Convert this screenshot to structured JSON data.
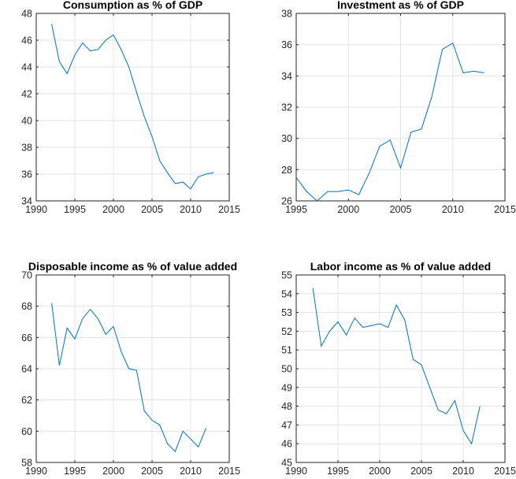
{
  "chart_data": [
    {
      "type": "line",
      "title": "Consumption as % of GDP",
      "xlabel": "",
      "ylabel": "",
      "xlim": [
        1990,
        2015
      ],
      "ylim": [
        34,
        48
      ],
      "xticks": [
        1990,
        1995,
        2000,
        2005,
        2010,
        2015
      ],
      "yticks": [
        34,
        36,
        38,
        40,
        42,
        44,
        46,
        48
      ],
      "grid": true,
      "color": "#0072bd",
      "x": [
        1992,
        1993,
        1994,
        1995,
        1996,
        1997,
        1998,
        1999,
        2000,
        2001,
        2002,
        2003,
        2004,
        2005,
        2006,
        2007,
        2008,
        2009,
        2010,
        2011,
        2012,
        2013
      ],
      "y": [
        47.2,
        44.4,
        43.5,
        44.9,
        45.8,
        45.2,
        45.3,
        46.0,
        46.4,
        45.3,
        44.0,
        42.1,
        40.3,
        38.8,
        37.0,
        36.1,
        35.3,
        35.4,
        34.9,
        35.8,
        36.0,
        36.1
      ]
    },
    {
      "type": "line",
      "title": "Investment as % of GDP",
      "xlabel": "",
      "ylabel": "",
      "xlim": [
        1995,
        2015
      ],
      "ylim": [
        26,
        38
      ],
      "xticks": [
        1995,
        2000,
        2005,
        2010,
        2015
      ],
      "yticks": [
        26,
        28,
        30,
        32,
        34,
        36,
        38
      ],
      "grid": true,
      "color": "#0072bd",
      "x": [
        1995,
        1996,
        1997,
        1998,
        1999,
        2000,
        2001,
        2002,
        2003,
        2004,
        2005,
        2006,
        2007,
        2008,
        2009,
        2010,
        2011,
        2012,
        2013
      ],
      "y": [
        27.5,
        26.6,
        26.0,
        26.6,
        26.6,
        26.7,
        26.4,
        27.8,
        29.5,
        29.9,
        28.1,
        30.4,
        30.6,
        32.7,
        35.7,
        36.1,
        34.2,
        34.3,
        34.2
      ]
    },
    {
      "type": "line",
      "title": "Disposable income as % of value added",
      "xlabel": "",
      "ylabel": "",
      "xlim": [
        1990,
        2015
      ],
      "ylim": [
        58,
        70
      ],
      "xticks": [
        1990,
        1995,
        2000,
        2005,
        2010,
        2015
      ],
      "yticks": [
        58,
        60,
        62,
        64,
        66,
        68,
        70
      ],
      "grid": true,
      "color": "#0072bd",
      "x": [
        1992,
        1993,
        1994,
        1995,
        1996,
        1997,
        1998,
        1999,
        2000,
        2001,
        2002,
        2003,
        2004,
        2005,
        2006,
        2007,
        2008,
        2009,
        2010,
        2011,
        2012
      ],
      "y": [
        68.2,
        64.2,
        66.6,
        65.9,
        67.2,
        67.8,
        67.2,
        66.2,
        66.7,
        65.1,
        64.0,
        63.9,
        61.3,
        60.7,
        60.4,
        59.2,
        58.7,
        60.0,
        59.5,
        59.0,
        60.2
      ]
    },
    {
      "type": "line",
      "title": "Labor income as % of value added",
      "xlabel": "",
      "ylabel": "",
      "xlim": [
        1990,
        2015
      ],
      "ylim": [
        45,
        55
      ],
      "xticks": [
        1990,
        1995,
        2000,
        2005,
        2010,
        2015
      ],
      "yticks": [
        45,
        46,
        47,
        48,
        49,
        50,
        51,
        52,
        53,
        54,
        55
      ],
      "grid": true,
      "color": "#0072bd",
      "x": [
        1992,
        1993,
        1994,
        1995,
        1996,
        1997,
        1998,
        1999,
        2000,
        2001,
        2002,
        2003,
        2004,
        2005,
        2006,
        2007,
        2008,
        2009,
        2010,
        2011,
        2012
      ],
      "y": [
        54.3,
        51.2,
        52.0,
        52.5,
        51.8,
        52.7,
        52.2,
        52.3,
        52.4,
        52.2,
        53.4,
        52.6,
        50.5,
        50.2,
        49.0,
        47.8,
        47.6,
        48.3,
        46.7,
        46.0,
        48.0
      ]
    }
  ]
}
